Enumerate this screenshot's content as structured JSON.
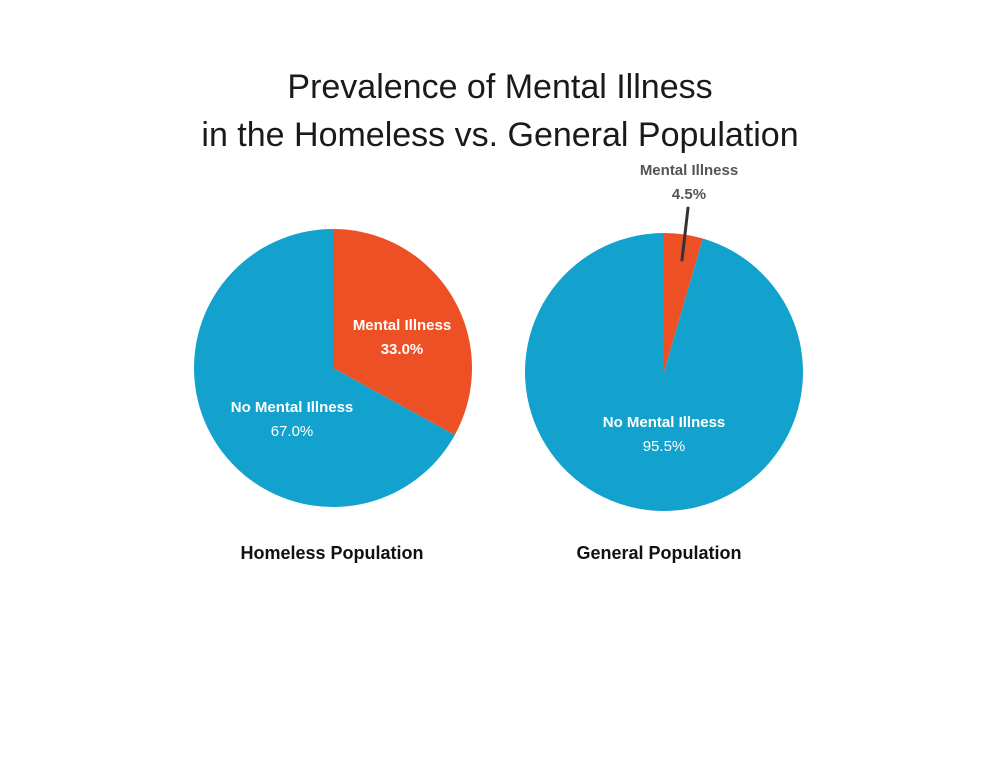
{
  "colors": {
    "mental_illness": "#ee5026",
    "no_mental_illness": "#12a2cd",
    "callout_text": "#555555",
    "callout_line": "#333333"
  },
  "chart_data": {
    "type": "pie",
    "title_lines": [
      "Prevalence of Mental Illness",
      "in the Homeless vs. General Population"
    ],
    "charts": [
      {
        "caption": "Homeless Population",
        "slices": [
          {
            "label": "Mental Illness",
            "value": 33.0,
            "value_label": "33.0%",
            "color_key": "mental_illness",
            "value_bold": true
          },
          {
            "label": "No Mental Illness",
            "value": 67.0,
            "value_label": "67.0%",
            "color_key": "no_mental_illness",
            "value_bold": false
          }
        ]
      },
      {
        "caption": "General Population",
        "slices": [
          {
            "label": "Mental Illness",
            "value": 4.5,
            "value_label": "4.5%",
            "color_key": "mental_illness",
            "value_bold": true,
            "callout": true
          },
          {
            "label": "No Mental Illness",
            "value": 95.5,
            "value_label": "95.5%",
            "color_key": "no_mental_illness",
            "value_bold": false
          }
        ]
      }
    ]
  }
}
